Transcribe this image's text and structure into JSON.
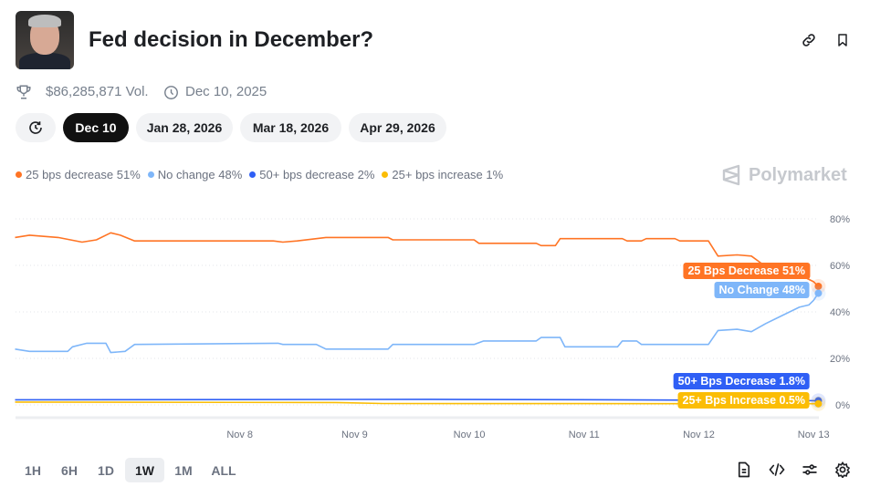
{
  "header": {
    "title": "Fed decision in December?",
    "volume": "$86,285,871 Vol.",
    "end_date": "Dec 10, 2025",
    "icons": [
      "link-icon",
      "bookmark-icon",
      "trophy-icon",
      "clock-icon"
    ]
  },
  "date_tabs": [
    {
      "label": "Dec 10",
      "selected": true
    },
    {
      "label": "Jan 28, 2026",
      "selected": false
    },
    {
      "label": "Mar 18, 2026",
      "selected": false
    },
    {
      "label": "Apr 29, 2026",
      "selected": false
    }
  ],
  "brand": "Polymarket",
  "legend": [
    {
      "label": "25 bps decrease 51%",
      "color": "#ff7424"
    },
    {
      "label": "No change 48%",
      "color": "#7eb6f9"
    },
    {
      "label": "50+ bps decrease 2%",
      "color": "#2f5ff5"
    },
    {
      "label": "25+ bps increase 1%",
      "color": "#fbbd05"
    }
  ],
  "time_ranges": [
    {
      "label": "1H"
    },
    {
      "label": "6H"
    },
    {
      "label": "1D"
    },
    {
      "label": "1W",
      "selected": true
    },
    {
      "label": "1M"
    },
    {
      "label": "ALL"
    }
  ],
  "toolbar_icons": [
    "document-icon",
    "code-icon",
    "sliders-icon",
    "gear-icon"
  ],
  "chart_data": {
    "type": "line",
    "x_ticks": [
      "Nov 8",
      "Nov 9",
      "Nov 10",
      "Nov 11",
      "Nov 12",
      "Nov 13"
    ],
    "y_ticks": [
      "0%",
      "20%",
      "40%",
      "60%",
      "80%"
    ],
    "ylim": [
      0,
      80
    ],
    "xlim": [
      "Nov 7 01:00",
      "Nov 14 01:00"
    ],
    "grid": true,
    "legend_position": "top-left",
    "series": [
      {
        "name": "25 Bps Decrease",
        "end_label": "25 Bps Decrease 51%",
        "color": "#ff7424",
        "points": [
          [
            "Nov 7 01:00",
            72
          ],
          [
            "Nov 7 04:00",
            73
          ],
          [
            "Nov 7 10:00",
            72
          ],
          [
            "Nov 7 15:00",
            70
          ],
          [
            "Nov 7 18:00",
            71
          ],
          [
            "Nov 7 21:00",
            74
          ],
          [
            "Nov 7 23:00",
            73
          ],
          [
            "Nov 8 02:00",
            70.5
          ],
          [
            "Nov 9 07:00",
            70.5
          ],
          [
            "Nov 9 09:00",
            70
          ],
          [
            "Nov 9 12:00",
            70.5
          ],
          [
            "Nov 9 18:00",
            72
          ],
          [
            "Nov 10 07:00",
            72
          ],
          [
            "Nov 10 08:00",
            71
          ],
          [
            "Nov 11 01:00",
            71
          ],
          [
            "Nov 11 02:00",
            69.5
          ],
          [
            "Nov 11 14:00",
            69.5
          ],
          [
            "Nov 11 15:00",
            68.5
          ],
          [
            "Nov 11 18:00",
            68.5
          ],
          [
            "Nov 11 19:00",
            71.5
          ],
          [
            "Nov 12 08:00",
            71.5
          ],
          [
            "Nov 12 09:00",
            70.5
          ],
          [
            "Nov 12 12:00",
            70.5
          ],
          [
            "Nov 12 13:00",
            71.5
          ],
          [
            "Nov 12 19:00",
            71.5
          ],
          [
            "Nov 12 20:00",
            70.5
          ],
          [
            "Nov 13 02:00",
            70.5
          ],
          [
            "Nov 13 04:00",
            64
          ],
          [
            "Nov 13 08:00",
            64.5
          ],
          [
            "Nov 13 11:00",
            64
          ],
          [
            "Nov 13 13:00",
            61
          ],
          [
            "Nov 13 17:00",
            58
          ],
          [
            "Nov 13 21:00",
            56
          ],
          [
            "Nov 14 00:00",
            53
          ],
          [
            "Nov 14 01:00",
            51
          ]
        ]
      },
      {
        "name": "No Change",
        "end_label": "No Change 48%",
        "color": "#7eb6f9",
        "points": [
          [
            "Nov 7 01:00",
            24
          ],
          [
            "Nov 7 04:00",
            23
          ],
          [
            "Nov 7 12:00",
            23
          ],
          [
            "Nov 7 13:00",
            25
          ],
          [
            "Nov 7 16:00",
            26.5
          ],
          [
            "Nov 7 20:00",
            26.5
          ],
          [
            "Nov 7 21:00",
            22.5
          ],
          [
            "Nov 8 00:00",
            23
          ],
          [
            "Nov 8 02:00",
            26
          ],
          [
            "Nov 9 08:00",
            26.5
          ],
          [
            "Nov 9 09:00",
            26
          ],
          [
            "Nov 9 16:00",
            26
          ],
          [
            "Nov 9 18:00",
            24
          ],
          [
            "Nov 10 07:00",
            24
          ],
          [
            "Nov 10 08:00",
            26
          ],
          [
            "Nov 11 01:00",
            26
          ],
          [
            "Nov 11 03:00",
            27.5
          ],
          [
            "Nov 11 14:00",
            27.5
          ],
          [
            "Nov 11 15:00",
            29
          ],
          [
            "Nov 11 19:00",
            29
          ],
          [
            "Nov 11 20:00",
            25
          ],
          [
            "Nov 12 07:00",
            25
          ],
          [
            "Nov 12 08:00",
            27.5
          ],
          [
            "Nov 12 11:00",
            27.5
          ],
          [
            "Nov 12 12:00",
            26
          ],
          [
            "Nov 13 02:00",
            26
          ],
          [
            "Nov 13 04:00",
            32
          ],
          [
            "Nov 13 08:00",
            32.5
          ],
          [
            "Nov 13 11:00",
            31.5
          ],
          [
            "Nov 13 14:00",
            35
          ],
          [
            "Nov 13 17:00",
            38
          ],
          [
            "Nov 13 19:00",
            40
          ],
          [
            "Nov 13 21:00",
            42
          ],
          [
            "Nov 13 23:00",
            43
          ],
          [
            "Nov 14 00:00",
            45
          ],
          [
            "Nov 14 01:00",
            48
          ]
        ]
      },
      {
        "name": "50+ Bps Decrease",
        "end_label": "50+ Bps Decrease 1.8%",
        "color": "#2f5ff5",
        "points": [
          [
            "Nov 7 01:00",
            2.2
          ],
          [
            "Nov 10 16:00",
            2.4
          ],
          [
            "Nov 11 00:00",
            2.3
          ],
          [
            "Nov 12 06:00",
            2.2
          ],
          [
            "Nov 14 01:00",
            1.8
          ]
        ]
      },
      {
        "name": "25+ Bps Increase",
        "end_label": "25+ Bps Increase 0.5%",
        "color": "#fbbd05",
        "points": [
          [
            "Nov 7 01:00",
            1.2
          ],
          [
            "Nov 9 20:00",
            1.0
          ],
          [
            "Nov 10 06:00",
            0.6
          ],
          [
            "Nov 14 01:00",
            0.5
          ]
        ]
      }
    ]
  }
}
